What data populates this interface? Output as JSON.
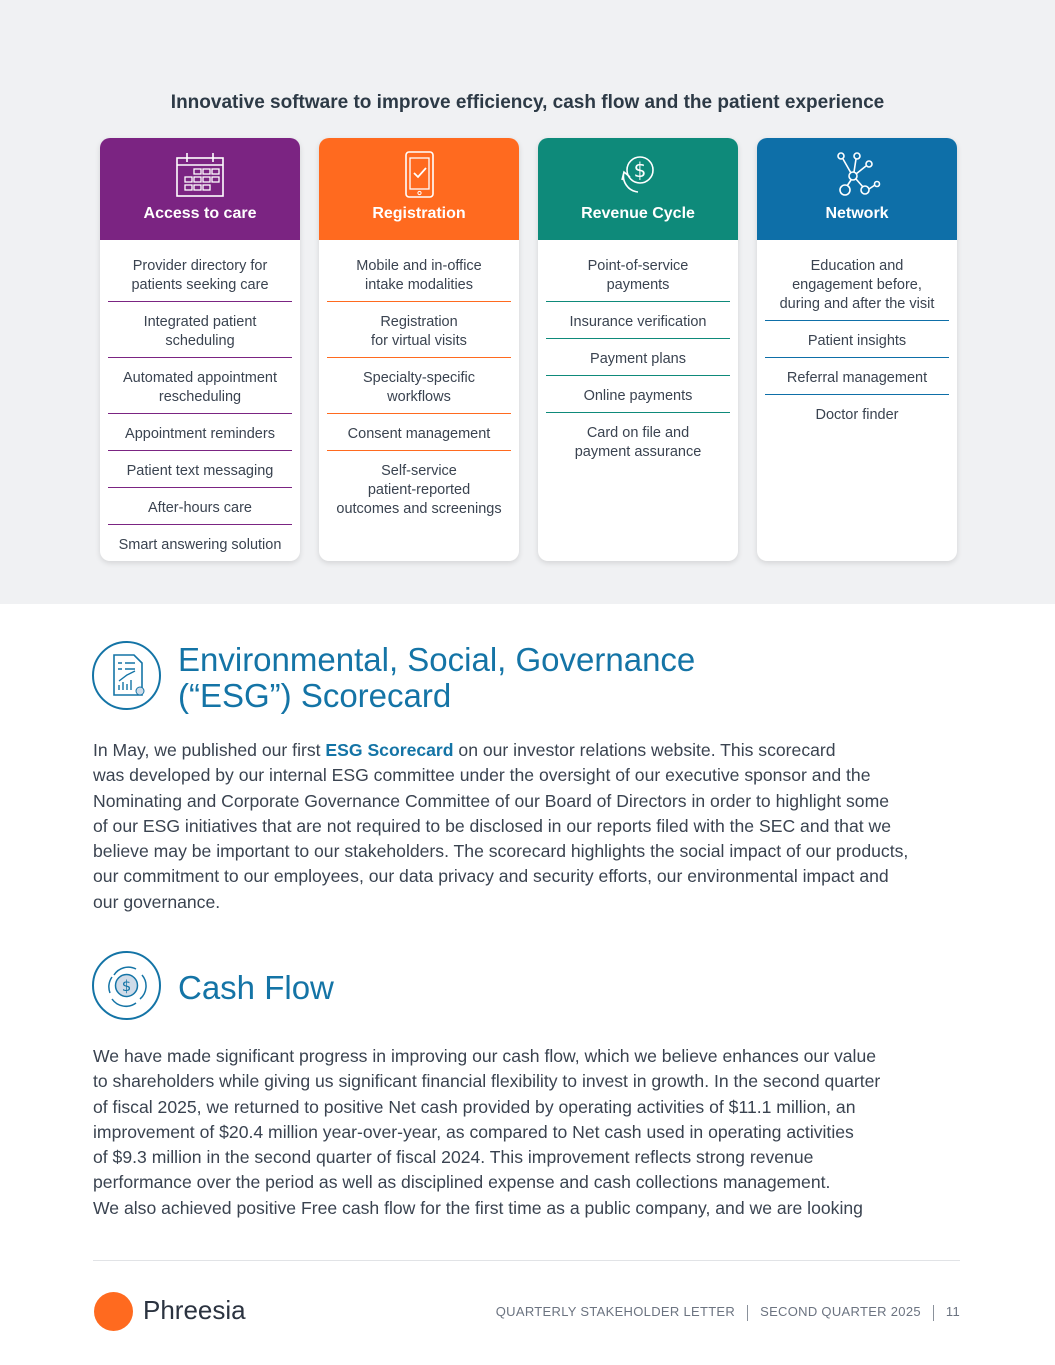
{
  "banner_title": "Innovative software to improve efficiency, cash flow and the patient experience",
  "cards": [
    {
      "title": "Access to care",
      "icon": "calendar-icon",
      "color": "#7b2482",
      "items": [
        "Provider directory for\npatients seeking care",
        "Integrated patient\nscheduling",
        "Automated appointment\nrescheduling",
        "Appointment reminders",
        "Patient text messaging",
        "After-hours care",
        "Smart answering solution"
      ]
    },
    {
      "title": "Registration",
      "icon": "mobile-check-icon",
      "color": "#ff6a1f",
      "items": [
        "Mobile and in-office\nintake modalities",
        "Registration\nfor virtual visits",
        "Specialty-specific\nworkflows",
        "Consent management",
        "Self-service\npatient-reported\noutcomes and screenings"
      ]
    },
    {
      "title": "Revenue Cycle",
      "icon": "dollar-cycle-icon",
      "color": "#0e8a7a",
      "items": [
        "Point-of-service\npayments",
        "Insurance verification",
        "Payment plans",
        "Online payments",
        "Card on file and\npayment assurance"
      ]
    },
    {
      "title": "Network",
      "icon": "network-icon",
      "color": "#0e6fa8",
      "items": [
        "Education and\nengagement before,\nduring and after the visit",
        "Patient insights",
        "Referral management",
        "Doctor finder"
      ]
    }
  ],
  "esg": {
    "title_line1": "Environmental, Social, Governance",
    "title_line2": "(“ESG”) Scorecard",
    "icon": "scorecard-document-icon",
    "first_pre": "In May, we published our first ",
    "link": "ESG Scorecard",
    "first_post": " on our investor relations website. This scorecard",
    "lines": [
      "was developed by our internal ESG committee under the oversight of our executive sponsor and the",
      "Nominating and Corporate Governance Committee of our Board of Directors in order to highlight some",
      "of our ESG initiatives that are not required to be disclosed in our reports filed with the SEC and that we",
      "believe may be important to our stakeholders. The scorecard highlights the social impact of our products,",
      "our commitment to our employees, our data privacy and security efforts, our environmental impact and",
      "our governance."
    ]
  },
  "cash_flow": {
    "title": "Cash Flow",
    "icon": "cash-cycle-icon",
    "lines": [
      "We have made significant progress in improving our cash flow, which we believe enhances our value",
      "to shareholders while giving us significant financial flexibility to invest in growth. In the second quarter",
      "of fiscal 2025, we returned to positive Net cash provided by operating activities of $11.1 million, an",
      "improvement of $20.4 million year-over-year, as compared to Net cash used in operating activities",
      "of $9.3 million in the second quarter of fiscal 2024. This improvement reflects strong revenue",
      "performance over the period as well as disciplined expense and cash collections management.",
      "We also achieved positive Free cash flow for the first time as a public company, and we are looking"
    ]
  },
  "footer": {
    "brand": "Phreesia",
    "brand_color": "#ff6a1f",
    "doc": "QUARTERLY STAKEHOLDER LETTER",
    "period": "SECOND QUARTER 2025",
    "page": "11"
  }
}
